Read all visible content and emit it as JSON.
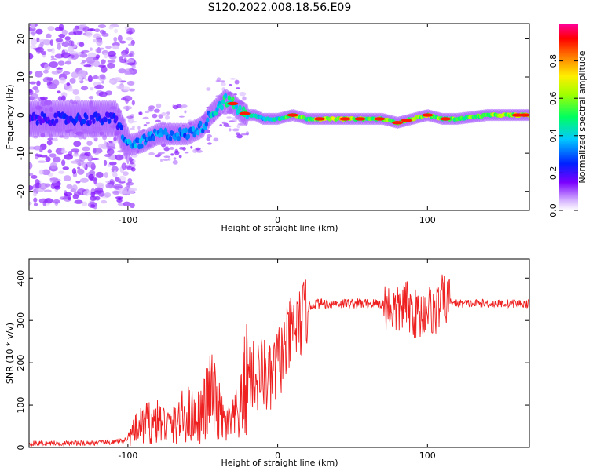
{
  "title": "S120.2022.008.18.56.E09",
  "colors": {
    "spectrum_low": "#b070ff",
    "spectrum_mid": "#00ddaa",
    "spectrum_high": "#ff2000",
    "snr_line": "#ee2020"
  },
  "chart_data": [
    {
      "type": "heatmap",
      "xlabel": "Height of straight line (km)",
      "ylabel": "Frequency (Hz)",
      "xlim": [
        -166,
        168
      ],
      "ylim": [
        -25,
        24
      ],
      "xticks": [
        {
          "value": -100,
          "label": "-100"
        },
        {
          "value": 0,
          "label": "0"
        },
        {
          "value": 100,
          "label": "100"
        }
      ],
      "yticks": [
        {
          "value": -20,
          "label": "-20"
        },
        {
          "value": -10,
          "label": "-10"
        },
        {
          "value": 0,
          "label": "0"
        },
        {
          "value": 10,
          "label": "10"
        },
        {
          "value": 20,
          "label": "20"
        }
      ],
      "ridge": {
        "x": [
          -166,
          -140,
          -120,
          -108,
          -100,
          -90,
          -80,
          -70,
          -60,
          -50,
          -45,
          -40,
          -35,
          -30,
          -25,
          -20,
          -15,
          -10,
          -5,
          0,
          10,
          20,
          40,
          60,
          70,
          80,
          90,
          100,
          110,
          120,
          140,
          168
        ],
        "freq": [
          -1,
          -1,
          -1,
          -1,
          -8,
          -7,
          -5,
          -5,
          -5,
          -3,
          0,
          2,
          4,
          3,
          1,
          0,
          0,
          -1,
          -1,
          -1,
          0,
          -1,
          -1,
          -1,
          -1,
          -2,
          -1,
          0,
          -1,
          -1,
          0,
          0
        ],
        "amplitude": [
          0.25,
          0.3,
          0.3,
          0.3,
          0.45,
          0.45,
          0.45,
          0.4,
          0.4,
          0.45,
          0.5,
          0.5,
          0.6,
          0.6,
          0.6,
          0.6,
          0.55,
          0.5,
          0.55,
          0.55,
          0.8,
          0.7,
          0.9,
          0.7,
          0.75,
          0.7,
          0.75,
          0.8,
          0.75,
          0.7,
          0.75,
          0.9
        ]
      },
      "colorbar": {
        "label": "Normalized spectral amplitude",
        "range": [
          0,
          1
        ],
        "ticks": [
          {
            "value": 0.0,
            "label": "0.0"
          },
          {
            "value": 0.2,
            "label": "0.2"
          },
          {
            "value": 0.4,
            "label": "0.4"
          },
          {
            "value": 0.6,
            "label": "0.6"
          },
          {
            "value": 0.8,
            "label": "0.8"
          }
        ]
      }
    },
    {
      "type": "line",
      "xlabel": "Height of straight line (km)",
      "ylabel": "SNR (10 * v/v)",
      "xlim": [
        -166,
        168
      ],
      "ylim": [
        0,
        445
      ],
      "xticks": [
        {
          "value": -100,
          "label": "-100"
        },
        {
          "value": 0,
          "label": "0"
        },
        {
          "value": 100,
          "label": "100"
        }
      ],
      "yticks": [
        {
          "value": 0,
          "label": "0"
        },
        {
          "value": 100,
          "label": "100"
        },
        {
          "value": 200,
          "label": "200"
        },
        {
          "value": 300,
          "label": "300"
        },
        {
          "value": 400,
          "label": "400"
        }
      ],
      "series": [
        {
          "x": [
            -166,
            -150,
            -130,
            -110,
            -100,
            -95,
            -90,
            -85,
            -80,
            -75,
            -70,
            -65,
            -60,
            -55,
            -50,
            -45,
            -40,
            -35,
            -30,
            -25,
            -20,
            -15,
            -10,
            -5,
            0,
            5,
            10,
            15,
            20,
            25,
            30,
            40,
            50,
            60,
            70,
            80,
            85,
            90,
            95,
            100,
            105,
            110,
            120,
            140,
            168
          ],
          "y": [
            10,
            10,
            10,
            12,
            20,
            40,
            55,
            60,
            60,
            55,
            50,
            70,
            80,
            70,
            80,
            130,
            90,
            50,
            60,
            90,
            180,
            160,
            180,
            150,
            200,
            230,
            280,
            290,
            330,
            340,
            340,
            340,
            340,
            340,
            340,
            320,
            340,
            320,
            310,
            330,
            320,
            350,
            340,
            340,
            340
          ]
        }
      ]
    }
  ]
}
